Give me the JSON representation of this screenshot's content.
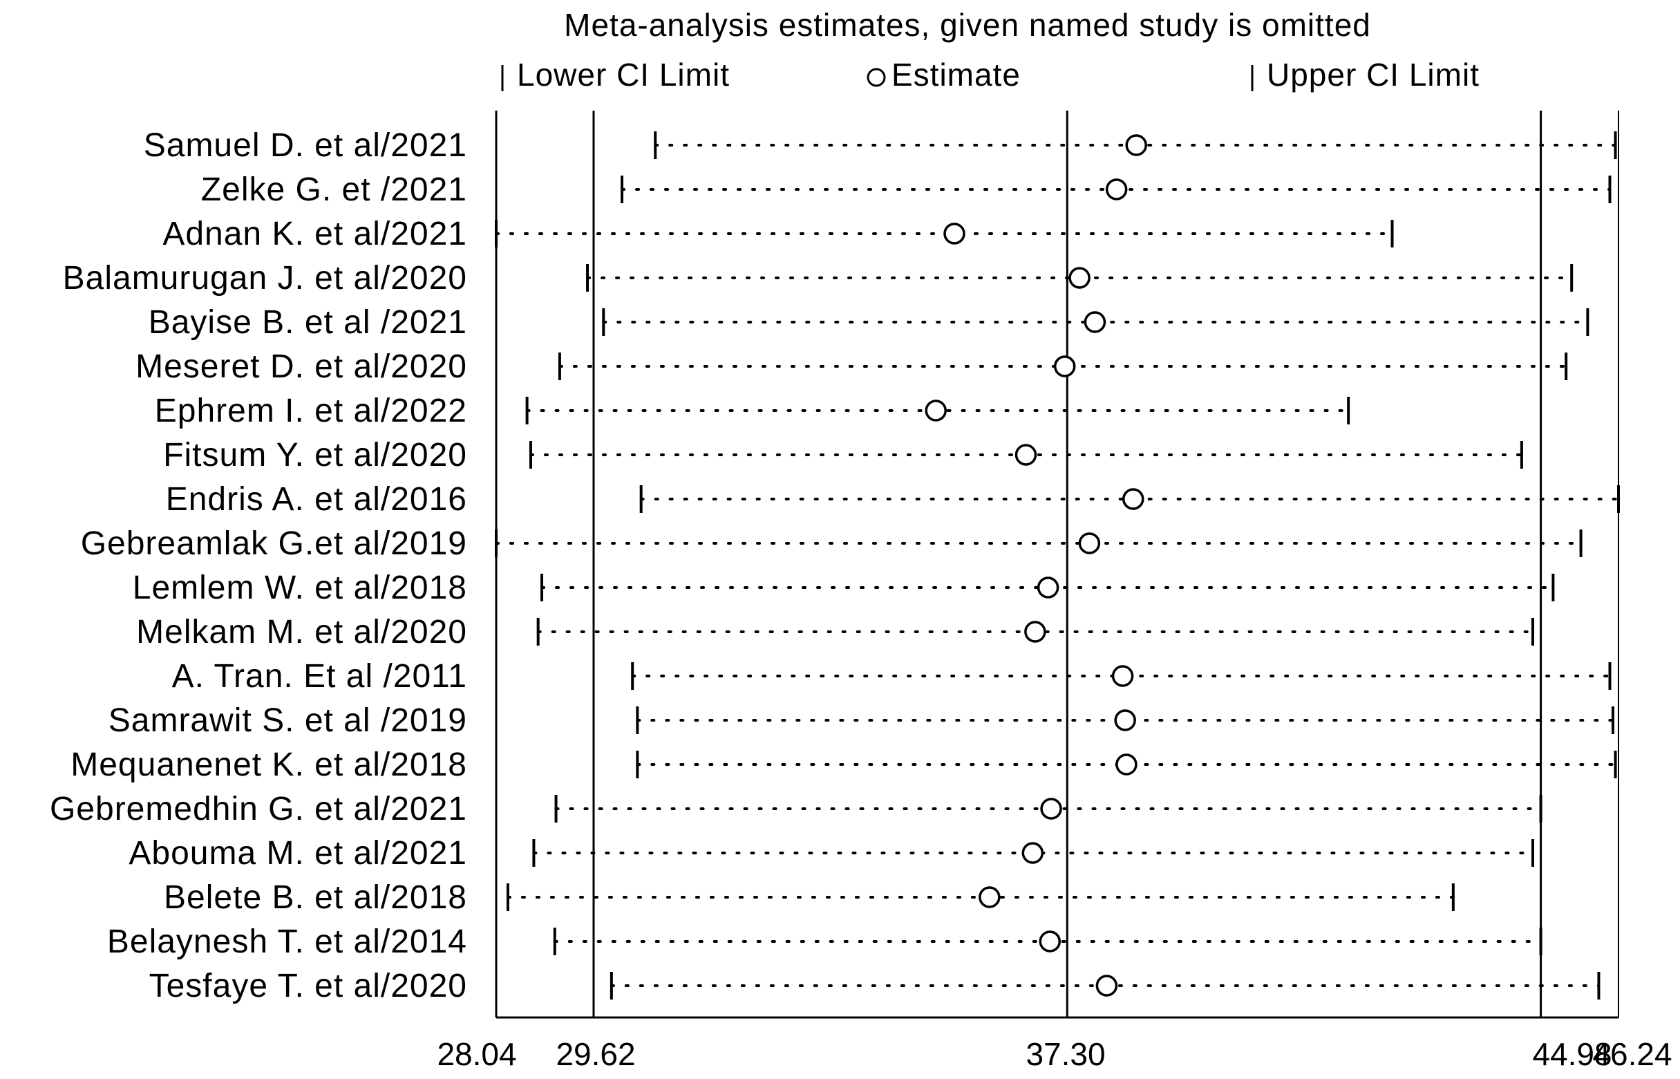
{
  "chart_data": {
    "type": "scatter",
    "subtype": "forest-plot-sensitivity",
    "title": "Meta-analysis estimates, given named study is omitted",
    "legend": {
      "position": "top",
      "items": [
        {
          "label": "Lower CI Limit",
          "marker": "tick"
        },
        {
          "label": "Estimate",
          "marker": "circle"
        },
        {
          "label": "Upper CI Limit",
          "marker": "tick"
        }
      ]
    },
    "x_ticks": [
      "28.04",
      "29.62",
      "37.30",
      "44.98",
      "46.24"
    ],
    "xlim": [
      28.04,
      46.24
    ],
    "reference_lines": [
      29.62,
      37.3,
      44.98
    ],
    "studies": [
      {
        "name": "Samuel D. et al/2021",
        "lower": 30.62,
        "estimate": 38.42,
        "upper": 46.19
      },
      {
        "name": "Zelke G. et /2021",
        "lower": 30.08,
        "estimate": 38.1,
        "upper": 46.1
      },
      {
        "name": "Adnan K. et al/2021",
        "lower": 28.04,
        "estimate": 35.47,
        "upper": 42.57
      },
      {
        "name": "Balamurugan J. et al/2020",
        "lower": 29.52,
        "estimate": 37.5,
        "upper": 45.48
      },
      {
        "name": "Bayise B. et al /2021",
        "lower": 29.78,
        "estimate": 37.75,
        "upper": 45.74
      },
      {
        "name": "Meseret D. et al/2020",
        "lower": 29.07,
        "estimate": 37.26,
        "upper": 45.39
      },
      {
        "name": "Ephrem I. et al/2022",
        "lower": 28.54,
        "estimate": 35.17,
        "upper": 41.86
      },
      {
        "name": "Fitsum Y. et al/2020",
        "lower": 28.6,
        "estimate": 36.63,
        "upper": 44.67
      },
      {
        "name": "Endris A. et al/2016",
        "lower": 30.39,
        "estimate": 38.37,
        "upper": 46.24
      },
      {
        "name": "Gebreamlak G.et al/2019",
        "lower": 28.04,
        "estimate": 37.66,
        "upper": 45.63
      },
      {
        "name": "Lemlem W. et al/2018",
        "lower": 28.78,
        "estimate": 36.99,
        "upper": 45.18
      },
      {
        "name": "Melkam M. et al/2020",
        "lower": 28.72,
        "estimate": 36.78,
        "upper": 44.85
      },
      {
        "name": "A. Tran. Et al /2011",
        "lower": 30.25,
        "estimate": 38.2,
        "upper": 46.1
      },
      {
        "name": "Samrawit S. et al /2019",
        "lower": 30.33,
        "estimate": 38.24,
        "upper": 46.15
      },
      {
        "name": "Mequanenet K. et al/2018",
        "lower": 30.33,
        "estimate": 38.26,
        "upper": 46.19
      },
      {
        "name": "Gebremedhin G. et al/2021",
        "lower": 29.01,
        "estimate": 37.04,
        "upper": 44.98
      },
      {
        "name": "Abouma M. et al/2021",
        "lower": 28.65,
        "estimate": 36.74,
        "upper": 44.85
      },
      {
        "name": "Belete B. et al/2018",
        "lower": 28.23,
        "estimate": 36.04,
        "upper": 43.56
      },
      {
        "name": "Belaynesh T. et al/2014",
        "lower": 28.99,
        "estimate": 37.02,
        "upper": 44.98
      },
      {
        "name": "Tesfaye T. et al/2020",
        "lower": 29.91,
        "estimate": 37.94,
        "upper": 45.92
      }
    ]
  }
}
